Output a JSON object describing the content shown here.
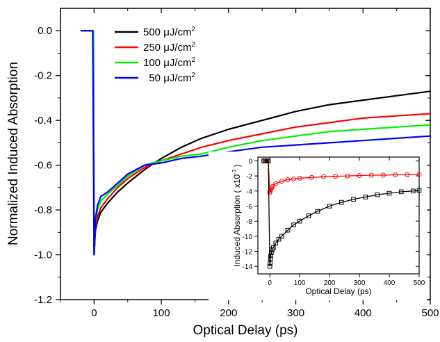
{
  "chart_data": [
    {
      "type": "line",
      "title": "",
      "xlabel": "Optical Delay (ps)",
      "ylabel": "Normalized Induced Absorption",
      "xlim": [
        -50,
        500
      ],
      "ylim": [
        -1.2,
        0.1
      ],
      "xticks": [
        0,
        100,
        200,
        300,
        400,
        500
      ],
      "xtick_labels": [
        "0",
        "100",
        "200",
        "300",
        "400",
        "500"
      ],
      "yticks": [
        0.0,
        -0.2,
        -0.4,
        -0.6,
        -0.8,
        -1.0,
        -1.2
      ],
      "ytick_labels": [
        "0.0",
        "-0.2",
        "-0.4",
        "-0.6",
        "-0.8",
        "-1.0",
        "-1.2"
      ],
      "grid": false,
      "legend_position": "top-left",
      "series": [
        {
          "name_prefix": "500 ",
          "name_unit": "μJ/cm",
          "name_sup": "2",
          "color": "#000000",
          "x": [
            0,
            2,
            5,
            10,
            20,
            35,
            50,
            75,
            100,
            130,
            160,
            200,
            250,
            300,
            350,
            400,
            450,
            500
          ],
          "y": [
            -1.0,
            -0.89,
            -0.85,
            -0.81,
            -0.77,
            -0.72,
            -0.68,
            -0.62,
            -0.57,
            -0.52,
            -0.48,
            -0.44,
            -0.4,
            -0.36,
            -0.33,
            -0.31,
            -0.29,
            -0.27
          ]
        },
        {
          "name_prefix": "250 ",
          "name_unit": "μJ/cm",
          "name_sup": "2",
          "color": "#ff0000",
          "x": [
            0,
            2,
            5,
            10,
            20,
            35,
            50,
            75,
            100,
            130,
            160,
            200,
            250,
            300,
            350,
            400,
            450,
            500
          ],
          "y": [
            -1.0,
            -0.87,
            -0.83,
            -0.79,
            -0.75,
            -0.7,
            -0.66,
            -0.61,
            -0.58,
            -0.55,
            -0.52,
            -0.49,
            -0.46,
            -0.43,
            -0.41,
            -0.39,
            -0.38,
            -0.37
          ]
        },
        {
          "name_prefix": "100 ",
          "name_unit": "μJ/cm",
          "name_sup": "2",
          "color": "#00ee00",
          "x": [
            0,
            2,
            5,
            10,
            20,
            35,
            50,
            75,
            100,
            130,
            160,
            200,
            250,
            300,
            350,
            400,
            450,
            500
          ],
          "y": [
            -1.0,
            -0.85,
            -0.8,
            -0.76,
            -0.73,
            -0.69,
            -0.65,
            -0.6,
            -0.58,
            -0.56,
            -0.55,
            -0.52,
            -0.49,
            -0.47,
            -0.45,
            -0.44,
            -0.43,
            -0.42
          ]
        },
        {
          "name_prefix": "  50 ",
          "name_unit": "μJ/cm",
          "name_sup": "2",
          "color": "#0000ff",
          "x": [
            -20,
            -15,
            -10,
            -5,
            -2,
            0,
            2,
            5,
            10,
            20,
            35,
            50,
            75,
            100,
            130,
            160,
            200,
            250,
            300,
            350,
            400,
            450,
            500
          ],
          "y": [
            0.0,
            0.0,
            0.0,
            0.0,
            0.0,
            -1.0,
            -0.84,
            -0.78,
            -0.74,
            -0.72,
            -0.68,
            -0.64,
            -0.6,
            -0.59,
            -0.57,
            -0.56,
            -0.54,
            -0.52,
            -0.51,
            -0.5,
            -0.49,
            -0.48,
            -0.47
          ]
        }
      ]
    },
    {
      "type": "scatter",
      "title": "",
      "xlabel": "Optical Delay (ps)",
      "ylabel_prefix": "Induced Absorption ( x10",
      "ylabel_sup": "-3",
      "ylabel_suffix": " )",
      "xlim": [
        -40,
        500
      ],
      "ylim": [
        -15,
        0.5
      ],
      "xticks": [
        0,
        100,
        200,
        300,
        400,
        500
      ],
      "xtick_labels": [
        "0",
        "100",
        "200",
        "300",
        "400",
        "500"
      ],
      "yticks": [
        0,
        -2,
        -4,
        -6,
        -8,
        -10,
        -12,
        -14
      ],
      "ytick_labels": [
        "0",
        "-2",
        "-4",
        "-6",
        "-8",
        "-10",
        "-12",
        "-14"
      ],
      "grid": false,
      "series": [
        {
          "marker": "circle",
          "color": "#ff0000",
          "x": [
            -20,
            -15,
            -10,
            -5,
            0,
            1,
            3,
            6,
            10,
            20,
            40,
            60,
            80,
            100,
            140,
            180,
            220,
            260,
            300,
            340,
            380,
            420,
            460,
            500
          ],
          "y": [
            0.0,
            0.0,
            0.0,
            0.0,
            -4.2,
            -4.0,
            -3.8,
            -3.6,
            -3.4,
            -3.0,
            -2.7,
            -2.5,
            -2.4,
            -2.3,
            -2.2,
            -2.1,
            -2.05,
            -2.0,
            -1.95,
            -1.9,
            -1.9,
            -1.85,
            -1.85,
            -1.8
          ]
        },
        {
          "marker": "square",
          "color": "#000000",
          "x": [
            -20,
            -15,
            -10,
            -5,
            0,
            1,
            2,
            3,
            5,
            8,
            12,
            20,
            30,
            40,
            60,
            80,
            100,
            130,
            160,
            200,
            240,
            280,
            320,
            360,
            400,
            440,
            480,
            500
          ],
          "y": [
            0.0,
            0.0,
            0.0,
            0.0,
            -14.0,
            -13.6,
            -13.0,
            -12.6,
            -12.2,
            -11.8,
            -11.5,
            -10.9,
            -10.4,
            -10.0,
            -9.2,
            -8.5,
            -8.0,
            -7.3,
            -6.7,
            -6.0,
            -5.5,
            -5.1,
            -4.8,
            -4.5,
            -4.3,
            -4.1,
            -4.0,
            -3.9
          ]
        }
      ]
    }
  ]
}
